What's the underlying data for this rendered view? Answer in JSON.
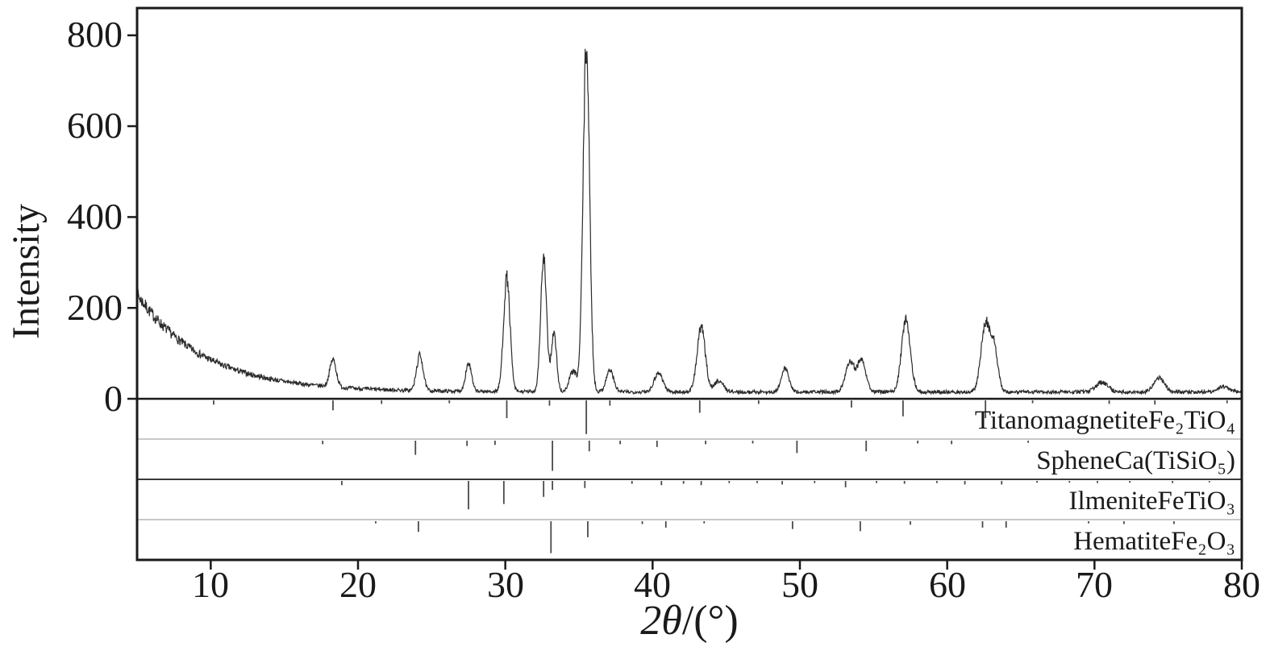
{
  "figure": {
    "background_color": "#ffffff",
    "trace_color": "#2b2b2b",
    "axis_color": "#1a1a1a",
    "stick_color": "#4a4a4a",
    "light_separator_color": "#b5b5b5",
    "dark_separator_color": "#3a3a3a"
  },
  "chart_data": {
    "type": "line",
    "title": "",
    "ylabel": "Intensity",
    "xlabel_parts": {
      "prefix": "2",
      "symbol": "θ",
      "suffix": "/(°)"
    },
    "xlim": [
      5,
      80
    ],
    "ylim": [
      0,
      860
    ],
    "xticks": [
      10,
      20,
      30,
      40,
      50,
      60,
      70,
      80
    ],
    "xtick_labels": [
      "10",
      "20",
      "30",
      "40",
      "50",
      "60",
      "70",
      "80"
    ],
    "yticks": [
      0,
      200,
      400,
      600,
      800
    ],
    "ytick_labels": [
      "0",
      "200",
      "400",
      "600",
      "800"
    ],
    "grid": false,
    "legend": "none",
    "pattern": {
      "description": "Measured XRD trace = decaying background + Gaussian peaks + noise",
      "background": {
        "base": 15,
        "amp": 215,
        "x0": 5,
        "decay": 4.5
      },
      "noise": {
        "base": 3,
        "scale": 0.055,
        "seed": 7
      },
      "sample_step": 0.03,
      "peaks_format": "[two_theta_deg, height, sigma_deg]",
      "peaks": [
        [
          18.3,
          60,
          0.22
        ],
        [
          24.2,
          78,
          0.22
        ],
        [
          27.5,
          62,
          0.2
        ],
        [
          30.1,
          250,
          0.22
        ],
        [
          32.6,
          292,
          0.2
        ],
        [
          33.3,
          128,
          0.18
        ],
        [
          34.6,
          45,
          0.25
        ],
        [
          35.5,
          762,
          0.22
        ],
        [
          37.1,
          48,
          0.25
        ],
        [
          40.4,
          42,
          0.3
        ],
        [
          43.3,
          142,
          0.28
        ],
        [
          44.5,
          25,
          0.3
        ],
        [
          49.0,
          52,
          0.25
        ],
        [
          53.4,
          68,
          0.3
        ],
        [
          54.2,
          72,
          0.28
        ],
        [
          57.2,
          158,
          0.3
        ],
        [
          62.6,
          150,
          0.3
        ],
        [
          63.2,
          90,
          0.25
        ],
        [
          70.5,
          22,
          0.4
        ],
        [
          74.4,
          32,
          0.35
        ],
        [
          78.8,
          12,
          0.4
        ]
      ]
    },
    "phases_sticks_format": "[two_theta_deg, relative_intensity_0_to_1]",
    "phases": [
      {
        "label": "TitanomagnetiteFe₂TiO₄",
        "sticks": [
          [
            10.2,
            0.12
          ],
          [
            18.3,
            0.28
          ],
          [
            21.6,
            0.1
          ],
          [
            26.2,
            0.08
          ],
          [
            30.1,
            0.5
          ],
          [
            33.0,
            0.15
          ],
          [
            35.5,
            0.95
          ],
          [
            37.1,
            0.15
          ],
          [
            43.2,
            0.35
          ],
          [
            47.2,
            0.1
          ],
          [
            53.5,
            0.2
          ],
          [
            57.0,
            0.45
          ],
          [
            62.6,
            0.5
          ],
          [
            65.8,
            0.08
          ],
          [
            71.0,
            0.1
          ],
          [
            74.1,
            0.12
          ],
          [
            79.0,
            0.08
          ]
        ]
      },
      {
        "label": "SpheneCa(TiSiO₅)",
        "sticks": [
          [
            17.6,
            0.1
          ],
          [
            23.9,
            0.4
          ],
          [
            27.4,
            0.15
          ],
          [
            29.3,
            0.12
          ],
          [
            33.2,
            0.85
          ],
          [
            35.7,
            0.3
          ],
          [
            37.8,
            0.1
          ],
          [
            40.3,
            0.18
          ],
          [
            43.6,
            0.1
          ],
          [
            46.8,
            0.08
          ],
          [
            49.8,
            0.35
          ],
          [
            54.5,
            0.3
          ],
          [
            58.0,
            0.08
          ],
          [
            60.3,
            0.1
          ],
          [
            65.5,
            0.06
          ]
        ]
      },
      {
        "label": "IlmeniteFeTiO₃",
        "sticks": [
          [
            18.9,
            0.12
          ],
          [
            27.5,
            0.8
          ],
          [
            29.9,
            0.65
          ],
          [
            32.6,
            0.45
          ],
          [
            33.2,
            0.25
          ],
          [
            35.4,
            0.2
          ],
          [
            38.6,
            0.08
          ],
          [
            40.6,
            0.12
          ],
          [
            42.1,
            0.08
          ],
          [
            43.3,
            0.12
          ],
          [
            45.2,
            0.06
          ],
          [
            47.1,
            0.06
          ],
          [
            48.8,
            0.1
          ],
          [
            51.0,
            0.06
          ],
          [
            53.1,
            0.18
          ],
          [
            55.2,
            0.06
          ],
          [
            57.1,
            0.08
          ],
          [
            59.3,
            0.06
          ],
          [
            61.2,
            0.1
          ],
          [
            63.7,
            0.1
          ],
          [
            66.1,
            0.05
          ],
          [
            68.3,
            0.05
          ],
          [
            70.2,
            0.06
          ],
          [
            72.4,
            0.05
          ],
          [
            75.3,
            0.06
          ],
          [
            77.8,
            0.04
          ]
        ]
      },
      {
        "label": "HematiteFe₂O₃",
        "sticks": [
          [
            21.2,
            0.06
          ],
          [
            24.1,
            0.3
          ],
          [
            33.1,
            0.9
          ],
          [
            35.6,
            0.45
          ],
          [
            39.3,
            0.08
          ],
          [
            40.9,
            0.18
          ],
          [
            43.5,
            0.06
          ],
          [
            49.5,
            0.22
          ],
          [
            54.1,
            0.28
          ],
          [
            57.5,
            0.1
          ],
          [
            62.4,
            0.18
          ],
          [
            64.0,
            0.18
          ],
          [
            69.6,
            0.06
          ],
          [
            72.0,
            0.08
          ],
          [
            75.4,
            0.08
          ]
        ]
      }
    ]
  }
}
